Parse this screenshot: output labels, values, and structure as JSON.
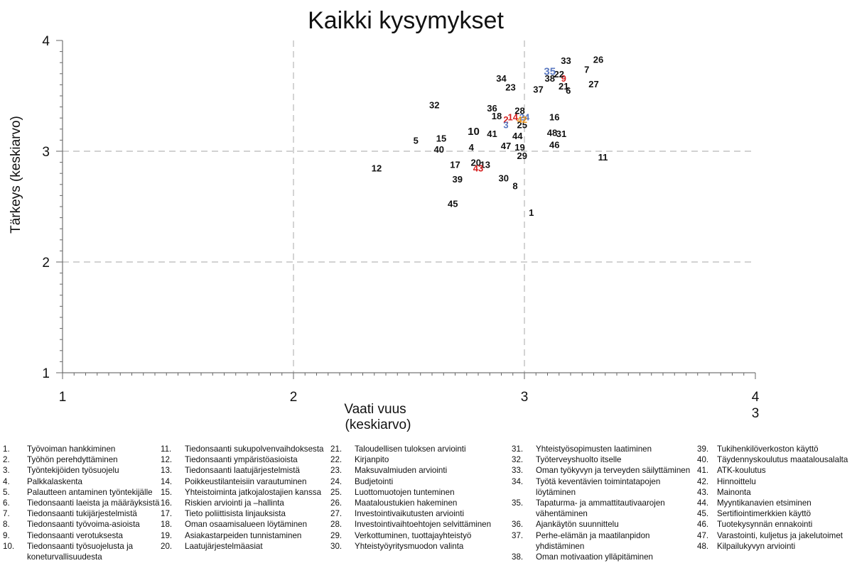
{
  "chart_data": {
    "type": "scatter",
    "title": "Kaikki kysymykset",
    "xlabel": [
      "Vaati vuus",
      "(keskiarvo)"
    ],
    "ylabel": "Tärkeys (keskiarvo)",
    "xlim": [
      1,
      4
    ],
    "ylim": [
      1,
      4
    ],
    "x_ticks": [
      "1",
      "2",
      "3",
      "4"
    ],
    "x_tick_extra": "3",
    "y_ticks": [
      "1",
      "2",
      "3",
      "4"
    ],
    "grid": "dashed lines at x=2, x=3 and y=2, y=3",
    "colors": {
      "default": "#111111",
      "red": "#d62020",
      "blue": "#5a78c0",
      "orange": "#e8901a"
    },
    "points": [
      {
        "label": "1",
        "x": 3.03,
        "y": 2.45
      },
      {
        "label": "2",
        "x": 2.92,
        "y": 3.29,
        "color": "red"
      },
      {
        "label": "3",
        "x": 2.92,
        "y": 3.24,
        "color": "blue"
      },
      {
        "label": "4",
        "x": 2.77,
        "y": 3.04
      },
      {
        "label": "5",
        "x": 2.53,
        "y": 3.1
      },
      {
        "label": "6",
        "x": 3.19,
        "y": 3.55
      },
      {
        "label": "7",
        "x": 3.27,
        "y": 3.74
      },
      {
        "label": "8",
        "x": 2.96,
        "y": 2.69
      },
      {
        "label": "9",
        "x": 3.17,
        "y": 3.66,
        "color": "red"
      },
      {
        "label": "10",
        "x": 2.78,
        "y": 3.18,
        "big": true
      },
      {
        "label": "11",
        "x": 3.34,
        "y": 2.95
      },
      {
        "label": "12",
        "x": 2.36,
        "y": 2.85
      },
      {
        "label": "13",
        "x": 2.83,
        "y": 2.88
      },
      {
        "label": "14",
        "x": 2.95,
        "y": 3.31,
        "color": "red"
      },
      {
        "label": "15",
        "x": 2.64,
        "y": 3.12
      },
      {
        "label": "16",
        "x": 3.13,
        "y": 3.31
      },
      {
        "label": "17",
        "x": 2.7,
        "y": 2.88
      },
      {
        "label": "18",
        "x": 2.88,
        "y": 3.32
      },
      {
        "label": "19",
        "x": 2.98,
        "y": 3.04
      },
      {
        "label": "20",
        "x": 2.79,
        "y": 2.9
      },
      {
        "label": "21",
        "x": 3.17,
        "y": 3.59
      },
      {
        "label": "22",
        "x": 3.15,
        "y": 3.7
      },
      {
        "label": "23",
        "x": 2.94,
        "y": 3.58
      },
      {
        "label": "24",
        "x": 3.0,
        "y": 3.31,
        "color": "blue"
      },
      {
        "label": "25",
        "x": 2.99,
        "y": 3.24
      },
      {
        "label": "26",
        "x": 3.32,
        "y": 3.83
      },
      {
        "label": "27",
        "x": 3.3,
        "y": 3.61
      },
      {
        "label": "28",
        "x": 2.98,
        "y": 3.37
      },
      {
        "label": "29",
        "x": 2.99,
        "y": 2.96
      },
      {
        "label": "30",
        "x": 2.91,
        "y": 2.76
      },
      {
        "label": "31",
        "x": 3.16,
        "y": 3.16
      },
      {
        "label": "32",
        "x": 2.61,
        "y": 3.42
      },
      {
        "label": "33",
        "x": 3.18,
        "y": 3.82
      },
      {
        "label": "34",
        "x": 2.9,
        "y": 3.66
      },
      {
        "label": "35",
        "x": 3.11,
        "y": 3.72,
        "color": "blue",
        "big": true
      },
      {
        "label": "36",
        "x": 2.86,
        "y": 3.39
      },
      {
        "label": "37",
        "x": 3.06,
        "y": 3.56
      },
      {
        "label": "38",
        "x": 3.11,
        "y": 3.66
      },
      {
        "label": "39",
        "x": 2.71,
        "y": 2.75
      },
      {
        "label": "40",
        "x": 2.63,
        "y": 3.02
      },
      {
        "label": "41",
        "x": 2.86,
        "y": 3.16
      },
      {
        "label": "42",
        "x": 2.99,
        "y": 3.29,
        "color": "orange"
      },
      {
        "label": "43",
        "x": 2.8,
        "y": 2.85,
        "color": "red"
      },
      {
        "label": "44",
        "x": 2.97,
        "y": 3.14
      },
      {
        "label": "45",
        "x": 2.69,
        "y": 2.53
      },
      {
        "label": "46",
        "x": 3.13,
        "y": 3.06
      },
      {
        "label": "47",
        "x": 2.92,
        "y": 3.05
      },
      {
        "label": "48",
        "x": 3.12,
        "y": 3.17
      }
    ]
  },
  "legend": {
    "columns": [
      [
        {
          "num": "1.",
          "text": "Työvoiman hankkiminen"
        },
        {
          "num": "2.",
          "text": "Työhön perehdyttäminen"
        },
        {
          "num": "3.",
          "text": "Työntekijöiden työsuojelu"
        },
        {
          "num": "4.",
          "text": "Palkkalaskenta"
        },
        {
          "num": "5.",
          "text": "Palautteen antaminen työntekijälle"
        },
        {
          "num": "6.",
          "text": "Tiedonsaanti laeista ja määräyksistä"
        },
        {
          "num": "7.",
          "text": "Tiedonsaanti tukijärjestelmistä"
        },
        {
          "num": "8.",
          "text": "Tiedonsaanti työvoima-asioista"
        },
        {
          "num": "9.",
          "text": "Tiedonsaanti verotuksesta"
        },
        {
          "num": "10.",
          "text": "Tiedonsaanti työsuojelusta ja"
        },
        {
          "num": "",
          "text": "koneturvallisuudesta"
        }
      ],
      [
        {
          "num": "11.",
          "text": "Tiedonsaanti sukupolvenvaihdoksesta"
        },
        {
          "num": "12.",
          "text": "Tiedonsaanti ympäristöasioista"
        },
        {
          "num": "13.",
          "text": "Tiedonsaanti laatujärjestelmistä"
        },
        {
          "num": "14.",
          "text": "Poikkeustilanteisiin varautuminen"
        },
        {
          "num": "15.",
          "text": "Yhteistoiminta jatkojalostajien kanssa"
        },
        {
          "num": "16.",
          "text": "Riskien arviointi ja –hallinta"
        },
        {
          "num": "17.",
          "text": "Tieto poliittisista linjauksista"
        },
        {
          "num": "18.",
          "text": "Oman osaamisalueen löytäminen"
        },
        {
          "num": "19.",
          "text": "Asiakastarpeiden tunnistaminen"
        },
        {
          "num": "20.",
          "text": "Laatujärjestelmäasiat"
        }
      ],
      [
        {
          "num": "21.",
          "text": "Taloudellisen tuloksen arviointi"
        },
        {
          "num": "22.",
          "text": "Kirjanpito"
        },
        {
          "num": "23.",
          "text": "Maksuvalmiuden arviointi"
        },
        {
          "num": "24.",
          "text": "Budjetointi"
        },
        {
          "num": "25.",
          "text": "Luottomuotojen tunteminen"
        },
        {
          "num": "26.",
          "text": "Maataloustukien hakeminen"
        },
        {
          "num": "27.",
          "text": "Investointivaikutusten arviointi"
        },
        {
          "num": "28.",
          "text": "Investointivaihtoehtojen selvittäminen"
        },
        {
          "num": "29.",
          "text": "Verkottuminen, tuottajayhteistyö"
        },
        {
          "num": "30.",
          "text": "Yhteistyöyritysmuodon valinta"
        }
      ],
      [
        {
          "num": "31.",
          "text": "Yhteistyösopimusten laatiminen"
        },
        {
          "num": "32.",
          "text": "Työterveyshuolto itselle"
        },
        {
          "num": "33.",
          "text": "Oman työkyvyn ja terveyden säilyttäminen"
        },
        {
          "num": "34.",
          "text": "Työtä keventävien toimintatapojen"
        },
        {
          "num": "",
          "text": "löytäminen"
        },
        {
          "num": "35.",
          "text": "Tapaturma- ja ammattitautivaarojen"
        },
        {
          "num": "",
          "text": "vähentäminen"
        },
        {
          "num": "36.",
          "text": "Ajankäytön suunnittelu"
        },
        {
          "num": "37.",
          "text": "Perhe-elämän ja maatilanpidon"
        },
        {
          "num": "",
          "text": "yhdistäminen"
        },
        {
          "num": "38.",
          "text": "Oman motivaation ylläpitäminen"
        }
      ],
      [
        {
          "num": "39.",
          "text": "Tukihenkilöverkoston käyttö"
        },
        {
          "num": "40.",
          "text": "Täydennyskoulutus maatalousalalta"
        },
        {
          "num": "41.",
          "text": "ATK-koulutus"
        },
        {
          "num": "42.",
          "text": "Hinnoittelu"
        },
        {
          "num": "43.",
          "text": "Mainonta"
        },
        {
          "num": "44.",
          "text": "Myyntikanavien etsiminen"
        },
        {
          "num": "45.",
          "text": "Sertifiointimerkkien käyttö"
        },
        {
          "num": "46.",
          "text": "Tuotekysynnän ennakointi"
        },
        {
          "num": "47.",
          "text": "Varastointi, kuljetus ja jakelutoimet"
        },
        {
          "num": "48.",
          "text": "Kilpailukyvyn arviointi"
        }
      ]
    ]
  }
}
